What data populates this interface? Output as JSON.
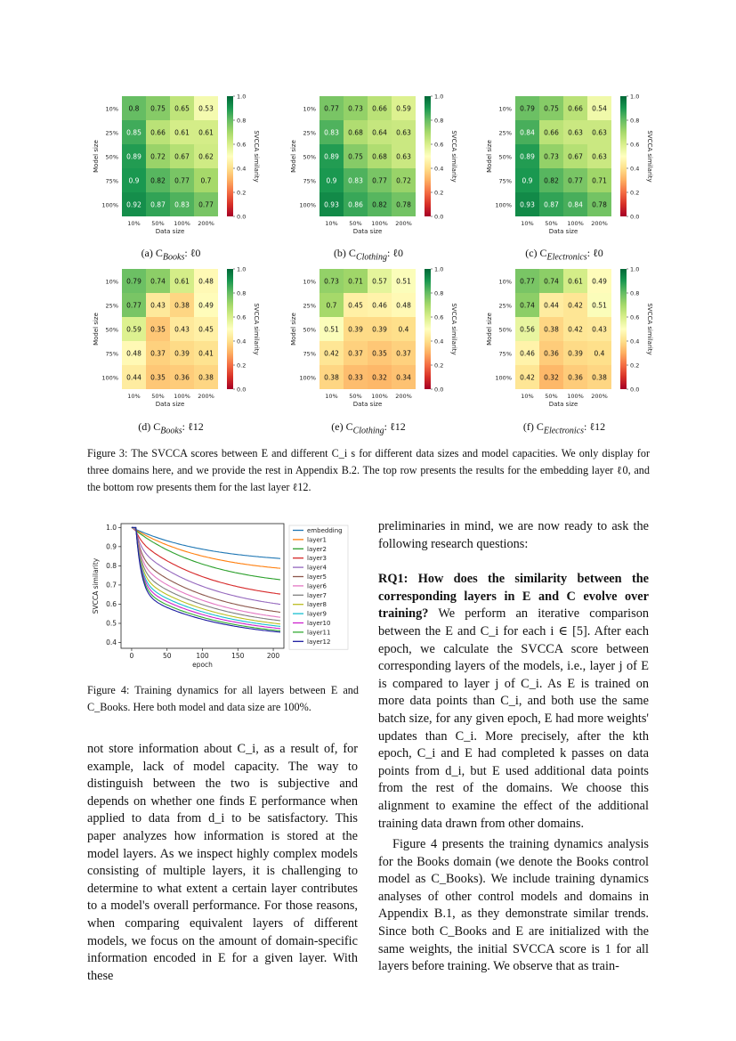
{
  "figure3": {
    "ylabel": "Model size",
    "xlabel": "Data size",
    "cbar_label": "SVCCA similarity",
    "cbar_ticks": [
      "1.0",
      "0.8",
      "0.6",
      "0.4",
      "0.2",
      "0.0"
    ],
    "row_labels": [
      "10%",
      "25%",
      "50%",
      "75%",
      "100%"
    ],
    "col_labels": [
      "10%",
      "50%",
      "100%",
      "200%"
    ],
    "panels": [
      {
        "id": "a",
        "caption": "(a) C",
        "subscript": "Books",
        "layer": ": ℓ0",
        "values": [
          [
            0.8,
            0.75,
            0.65,
            0.53
          ],
          [
            0.85,
            0.66,
            0.61,
            0.61
          ],
          [
            0.89,
            0.72,
            0.67,
            0.62
          ],
          [
            0.9,
            0.82,
            0.77,
            0.7
          ],
          [
            0.92,
            0.87,
            0.83,
            0.77
          ]
        ]
      },
      {
        "id": "b",
        "caption": "(b) C",
        "subscript": "Clothing",
        "layer": ": ℓ0",
        "values": [
          [
            0.77,
            0.73,
            0.66,
            0.59
          ],
          [
            0.83,
            0.68,
            0.64,
            0.63
          ],
          [
            0.89,
            0.75,
            0.68,
            0.63
          ],
          [
            0.9,
            0.83,
            0.77,
            0.72
          ],
          [
            0.93,
            0.86,
            0.82,
            0.78
          ]
        ]
      },
      {
        "id": "c",
        "caption": "(c) C",
        "subscript": "Electronics",
        "layer": ": ℓ0",
        "values": [
          [
            0.79,
            0.75,
            0.66,
            0.54
          ],
          [
            0.84,
            0.66,
            0.63,
            0.63
          ],
          [
            0.89,
            0.73,
            0.67,
            0.63
          ],
          [
            0.9,
            0.82,
            0.77,
            0.71
          ],
          [
            0.93,
            0.87,
            0.84,
            0.78
          ]
        ]
      },
      {
        "id": "d",
        "caption": "(d) C",
        "subscript": "Books",
        "layer": ": ℓ12",
        "values": [
          [
            0.79,
            0.74,
            0.61,
            0.48
          ],
          [
            0.77,
            0.43,
            0.38,
            0.49
          ],
          [
            0.59,
            0.35,
            0.43,
            0.45
          ],
          [
            0.48,
            0.37,
            0.39,
            0.41
          ],
          [
            0.44,
            0.35,
            0.36,
            0.38
          ]
        ]
      },
      {
        "id": "e",
        "caption": "(e) C",
        "subscript": "Clothing",
        "layer": ": ℓ12",
        "values": [
          [
            0.73,
            0.71,
            0.57,
            0.51
          ],
          [
            0.7,
            0.45,
            0.46,
            0.48
          ],
          [
            0.51,
            0.39,
            0.39,
            0.4
          ],
          [
            0.42,
            0.37,
            0.35,
            0.37
          ],
          [
            0.38,
            0.33,
            0.32,
            0.34
          ]
        ]
      },
      {
        "id": "f",
        "caption": "(f) C",
        "subscript": "Electronics",
        "layer": ": ℓ12",
        "values": [
          [
            0.77,
            0.74,
            0.61,
            0.49
          ],
          [
            0.74,
            0.44,
            0.42,
            0.51
          ],
          [
            0.56,
            0.38,
            0.42,
            0.43
          ],
          [
            0.46,
            0.36,
            0.39,
            0.4
          ],
          [
            0.42,
            0.32,
            0.36,
            0.38
          ]
        ]
      }
    ],
    "caption_text": "Figure 3: The SVCCA scores between E and different C_i s for different data sizes and model capacities. We only display for three domains here, and we provide the rest in Appendix B.2. The top row presents the results for the embedding layer ℓ0, and the bottom row presents them for the last layer ℓ12."
  },
  "chart_data": {
    "type": "line",
    "xlabel": "epoch",
    "ylabel": "SVCCA similarity",
    "xticks": [
      0,
      50,
      100,
      150,
      200
    ],
    "yticks": [
      0.4,
      0.5,
      0.6,
      0.7,
      0.8,
      0.9,
      1.0
    ],
    "xlim": [
      -15,
      215
    ],
    "ylim": [
      0.37,
      1.02
    ],
    "legend_position": "right",
    "series": [
      {
        "name": "embedding",
        "color": "#1f77b4",
        "end": 0.81,
        "knee": 0.0
      },
      {
        "name": "layer1",
        "color": "#ff7f0e",
        "end": 0.75,
        "knee": 0.0
      },
      {
        "name": "layer2",
        "color": "#2ca02c",
        "end": 0.68,
        "knee": 0.0
      },
      {
        "name": "layer3",
        "color": "#d62728",
        "end": 0.6,
        "knee": 0.2
      },
      {
        "name": "layer4",
        "color": "#9467bd",
        "end": 0.545,
        "knee": 0.35
      },
      {
        "name": "layer5",
        "color": "#8c564b",
        "end": 0.505,
        "knee": 0.5
      },
      {
        "name": "layer6",
        "color": "#e377c2",
        "end": 0.48,
        "knee": 0.6
      },
      {
        "name": "layer7",
        "color": "#7f7f7f",
        "end": 0.465,
        "knee": 0.7
      },
      {
        "name": "layer8",
        "color": "#bcbd22",
        "end": 0.45,
        "knee": 0.78
      },
      {
        "name": "layer9",
        "color": "#17becf",
        "end": 0.44,
        "knee": 0.85
      },
      {
        "name": "layer10",
        "color": "#cc22cc",
        "end": 0.43,
        "knee": 0.9
      },
      {
        "name": "layer11",
        "color": "#33aa33",
        "end": 0.42,
        "knee": 0.95
      },
      {
        "name": "layer12",
        "color": "#1a1aa0",
        "end": 0.415,
        "knee": 1.0
      }
    ]
  },
  "figure4_caption": "Figure 4: Training dynamics for all layers between E and C_Books. Here both model and data size are 100%.",
  "left_column": "not store information about C_i, as a result of, for example, lack of model capacity. The way to distinguish between the two is subjective and depends on whether one finds E performance when applied to data from d_i to be satisfactory. This paper analyzes how information is stored at the model layers. As we inspect highly complex models consisting of multiple layers, it is challenging to determine to what extent a certain layer contributes to a model's overall performance. For those reasons, when comparing equivalent layers of different models, we focus on the amount of domain-specific information encoded in E for a given layer. With these",
  "right_column": {
    "intro": "preliminaries in mind, we are now ready to ask the following research questions:",
    "rq1_head": "RQ1: How does the similarity between the corresponding layers in E and C evolve over training?",
    "rq1_body": "We perform an iterative comparison between the E and C_i for each i ∈ [5]. After each epoch, we calculate the SVCCA score between corresponding layers of the models, i.e., layer j of E is compared to layer j of C_i. As E is trained on more data points than C_i, and both use the same batch size, for any given epoch, E had more weights' updates than C_i. More precisely, after the kth epoch, C_i and E had completed k passes on data points from d_i, but E used additional data points from the rest of the domains. We choose this alignment to examine the effect of the additional training data drawn from other domains.",
    "para2": "Figure 4 presents the training dynamics analysis for the Books domain (we denote the Books control model as C_Books). We include training dynamics analyses of other control models and domains in Appendix B.1, as they demonstrate similar trends. Since both C_Books and E are initialized with the same weights, the initial SVCCA score is 1 for all layers before training. We observe that as train-"
  }
}
